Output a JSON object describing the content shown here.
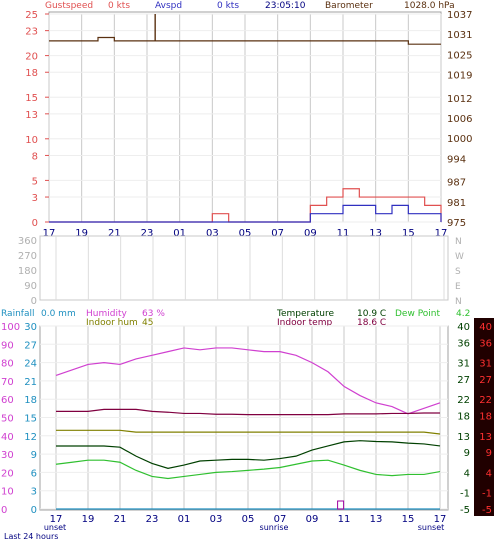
{
  "colors": {
    "gust": "#e05050",
    "avg": "#3030c0",
    "baro": "#5a3010",
    "humidity": "#d040d0",
    "indoor_hum": "#808000",
    "temperature": "#004000",
    "dewpoint": "#30c030",
    "indoor_temp": "#800040",
    "rainfall": "#2090c0",
    "grid": "#c8c8c8",
    "neutral": "#a0a0a0",
    "dark_red_bg": "#200000",
    "cyan_axis": "#2090c0"
  },
  "header_wind": {
    "gust_label": "Gustspeed",
    "gust_value": "0 kts",
    "avg_label": "Avspd",
    "avg_value": "0 kts",
    "time": "23:05:10",
    "baro_label": "Barometer",
    "baro_value": "1028.0 hPa"
  },
  "header_weather": {
    "rain_label": "Rainfall",
    "rain_value": "0.0 mm",
    "hum_label": "Humidity",
    "hum_value": "63 %",
    "inhum_label": "Indoor hum",
    "inhum_value": "45",
    "temp_label": "Temperature",
    "temp_value": "10.9 C",
    "dew_label": "Dew Point",
    "dew_value": "4.2",
    "intemp_label": "Indoor temp",
    "intemp_value": "18.6 C"
  },
  "x_ticks": [
    "17",
    "19",
    "21",
    "23",
    "01",
    "03",
    "05",
    "07",
    "09",
    "11",
    "13",
    "15",
    "17"
  ],
  "x_sublabels": {
    "sunset_left": "unset",
    "sunrise": "sunrise",
    "sunset_right": "sunset"
  },
  "footer": "Last 24 hours",
  "chart_data": [
    {
      "type": "line",
      "title": "",
      "x": [
        0,
        1,
        2,
        3,
        4,
        5,
        6,
        7,
        8,
        9,
        10,
        11,
        12,
        13,
        14,
        15,
        16,
        17,
        18,
        19,
        20,
        21,
        22,
        23,
        24
      ],
      "y_left_ticks": [
        0,
        3,
        5,
        8,
        10,
        13,
        15,
        18,
        20,
        23,
        25
      ],
      "y_right_ticks": [
        975,
        981,
        987,
        994,
        1000,
        1006,
        1012,
        1019,
        1025,
        1031,
        1037
      ],
      "y_left_range": [
        0,
        25
      ],
      "y_right_range": [
        975,
        1037
      ],
      "series": [
        {
          "name": "Gustspeed",
          "axis": "left",
          "values": [
            0,
            0,
            0,
            0,
            0,
            0,
            0,
            0,
            0,
            0,
            1,
            0,
            0,
            0,
            0,
            0,
            2,
            3,
            4,
            3,
            3,
            3,
            3,
            2,
            0
          ]
        },
        {
          "name": "Avspd",
          "axis": "left",
          "values": [
            0,
            0,
            0,
            0,
            0,
            0,
            0,
            0,
            0,
            0,
            0,
            0,
            0,
            0,
            0,
            0,
            1,
            1,
            2,
            2,
            1,
            2,
            1,
            1,
            0
          ]
        },
        {
          "name": "Barometer",
          "axis": "right",
          "values": [
            1029,
            1029,
            1029,
            1030,
            1029,
            1029,
            1029,
            1029,
            1029,
            1029,
            1029,
            1029,
            1029,
            1029,
            1029,
            1029,
            1029,
            1029,
            1029,
            1029,
            1029,
            1029,
            1028,
            1028,
            1028
          ]
        }
      ]
    },
    {
      "type": "line",
      "title": "",
      "y_ticks_text": [
        "360",
        "270",
        "180",
        "90",
        "0"
      ],
      "y_ticks_right_text": [
        "N",
        "W",
        "S",
        "E",
        "N"
      ],
      "series": [
        {
          "name": "",
          "values": []
        }
      ]
    },
    {
      "type": "line",
      "title": "",
      "x": [
        0,
        1,
        2,
        3,
        4,
        5,
        6,
        7,
        8,
        9,
        10,
        11,
        12,
        13,
        14,
        15,
        16,
        17,
        18,
        19,
        20,
        21,
        22,
        23,
        24
      ],
      "y_hum_ticks": [
        0,
        10,
        20,
        30,
        40,
        50,
        60,
        70,
        80,
        90,
        100
      ],
      "y_temp_ticks": [
        0,
        3,
        6,
        9,
        12,
        15,
        18,
        21,
        24,
        27,
        30
      ],
      "y_right_ticks": [
        -5,
        -1,
        4,
        9,
        13,
        18,
        22,
        27,
        31,
        36,
        40
      ],
      "y_right_red_ticks": [
        -5,
        -1,
        4,
        9,
        13,
        18,
        22,
        27,
        31,
        36,
        40
      ],
      "series": [
        {
          "name": "Humidity",
          "axis": "hum",
          "values": [
            73,
            76,
            79,
            80,
            79,
            82,
            84,
            86,
            88,
            87,
            88,
            88,
            87,
            86,
            86,
            84,
            80,
            75,
            67,
            62,
            58,
            56,
            52,
            55,
            58
          ]
        },
        {
          "name": "Indoor hum",
          "axis": "hum",
          "values": [
            43,
            43,
            43,
            43,
            43,
            42,
            42,
            42,
            42,
            42,
            42,
            42,
            42,
            42,
            42,
            42,
            42,
            42,
            42,
            42,
            42,
            42,
            42,
            42,
            41
          ]
        },
        {
          "name": "Indoor temp",
          "axis": "right",
          "values": [
            19.0,
            19.0,
            19.0,
            19.5,
            19.5,
            19.5,
            19.0,
            18.8,
            18.5,
            18.5,
            18.3,
            18.3,
            18.2,
            18.2,
            18.2,
            18.2,
            18.2,
            18.2,
            18.4,
            18.4,
            18.4,
            18.5,
            18.5,
            18.6,
            18.6
          ]
        },
        {
          "name": "Temperature",
          "axis": "right",
          "values": [
            10.5,
            10.5,
            10.5,
            10.5,
            10.2,
            8.0,
            6.2,
            5.0,
            5.8,
            6.8,
            7.0,
            7.2,
            7.2,
            7.0,
            7.4,
            8.0,
            9.5,
            10.5,
            11.5,
            11.8,
            11.6,
            11.5,
            11.2,
            11.0,
            10.5
          ]
        },
        {
          "name": "Dew Point",
          "axis": "right",
          "values": [
            6.0,
            6.5,
            7.0,
            7.0,
            6.5,
            4.5,
            3.0,
            2.5,
            3.0,
            3.5,
            4.0,
            4.2,
            4.5,
            4.8,
            5.2,
            6.0,
            6.8,
            7.0,
            5.8,
            4.5,
            3.5,
            3.2,
            3.5,
            3.5,
            4.2
          ]
        },
        {
          "name": "Rainfall",
          "axis": "temp",
          "values": [
            0,
            0,
            0,
            0,
            0,
            0,
            0,
            0,
            0,
            0,
            0,
            0,
            0,
            0,
            0,
            0,
            0,
            0,
            0,
            0,
            0,
            0,
            0,
            0,
            0
          ]
        }
      ]
    }
  ]
}
